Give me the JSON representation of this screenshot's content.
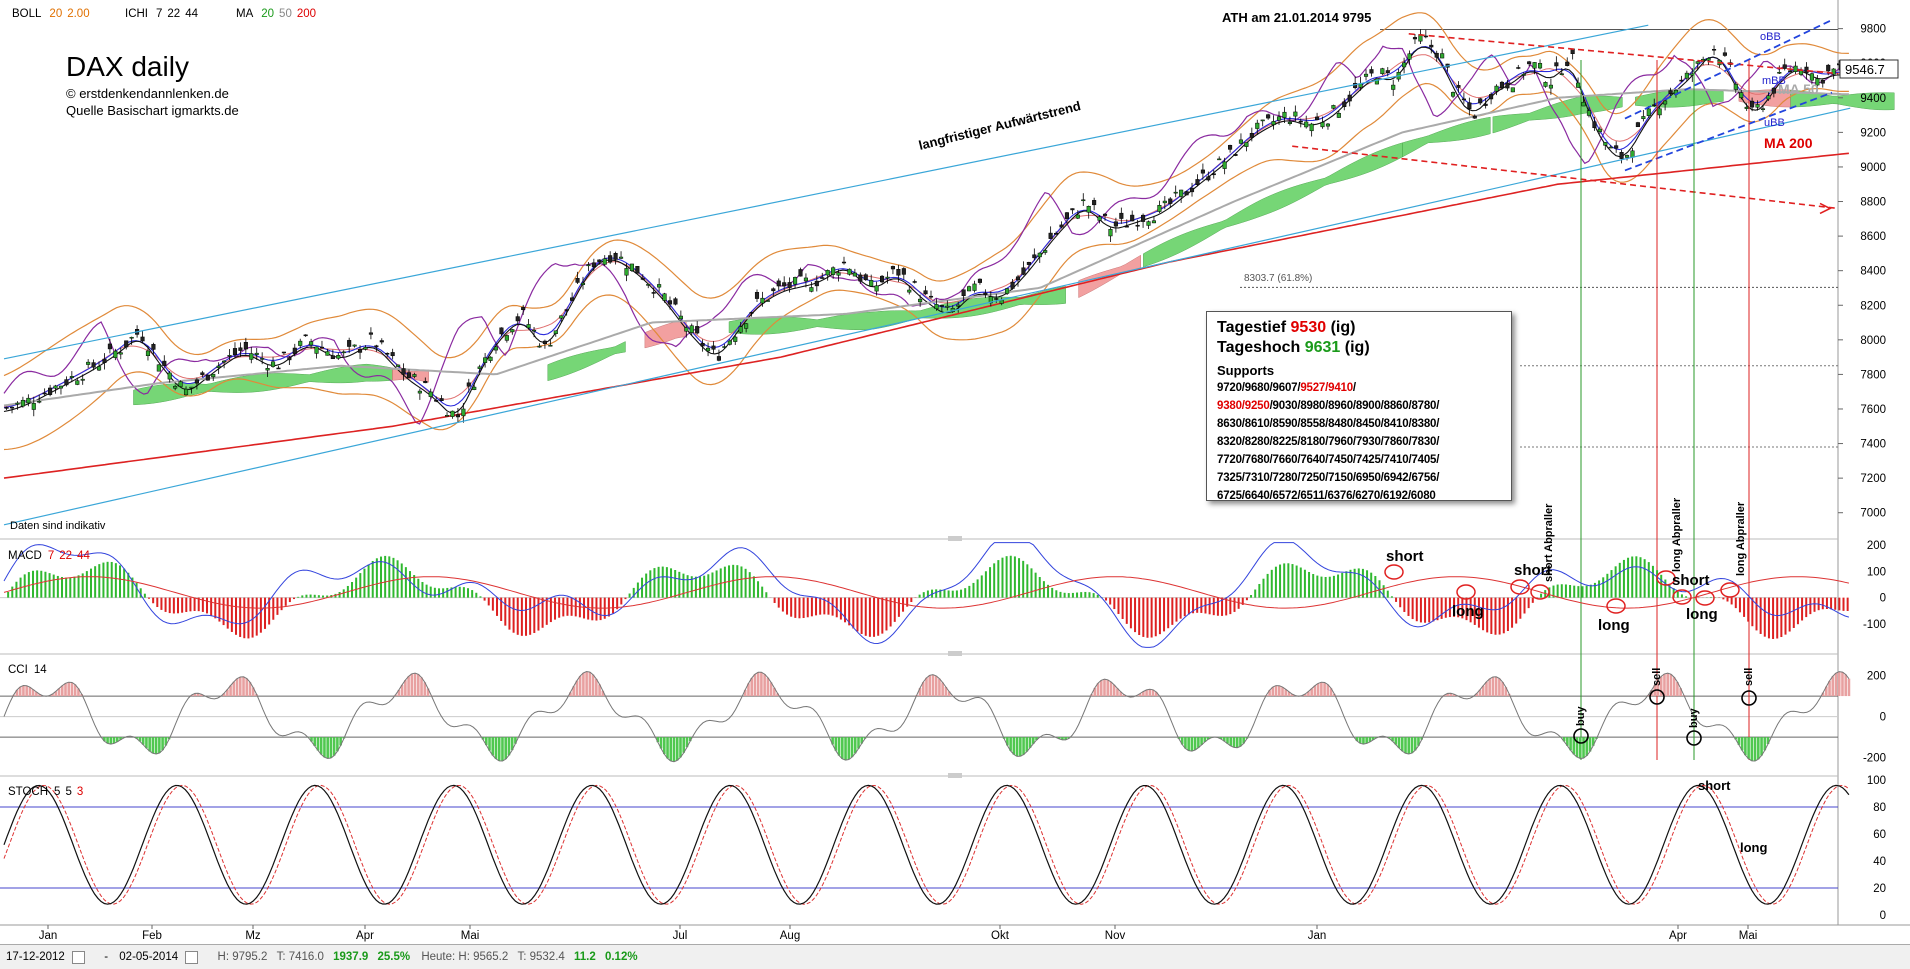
{
  "header": {
    "boll": {
      "name": "BOLL",
      "p1": "20",
      "p2": "2.00"
    },
    "ichi": {
      "name": "ICHI",
      "p1": "7",
      "p2": "22",
      "p3": "44"
    },
    "ma": {
      "name": "MA",
      "p1": "20",
      "p2": "50",
      "p3": "200"
    }
  },
  "title": "DAX daily",
  "credit1": "© erstdenkendannlenken.de",
  "credit2": "Quelle Basischart igmarkts.de",
  "data_note": "Daten sind indikativ",
  "ath_label": "ATH am 21.01.2014 9795",
  "trend_label": "langfristiger Aufwärtstrend",
  "fib_label": "8303.7 (61.8%)",
  "current_price": "9546.7",
  "labels_right": {
    "obb": "oBB",
    "mbb": "mBB",
    "ubb": "uBB",
    "ma50": "MA 50",
    "ma200": "MA 200"
  },
  "info_box": {
    "tagestief_label": "Tagestief",
    "tagestief_value": "9530",
    "tageshoch_label": "Tageshoch",
    "tageshoch_value": "9631",
    "ig": "(ig)",
    "supports_title": "Supports",
    "support_lines": [
      [
        {
          "t": "9720/9680/9607/",
          "c": "k"
        },
        {
          "t": "9527/9410",
          "c": "r"
        },
        {
          "t": "/",
          "c": "k"
        }
      ],
      [
        {
          "t": "9380/9250",
          "c": "r"
        },
        {
          "t": "/9030/8980/8960/8900/8860/8780/",
          "c": "k"
        }
      ],
      [
        {
          "t": "8630/8610/8590/8558/8480/8450/8410/8380/",
          "c": "k"
        }
      ],
      [
        {
          "t": "8320/8280/8225/8180/7960/7930/7860/7830/",
          "c": "k"
        }
      ],
      [
        {
          "t": "7720/7680/7660/7640/7450/7425/7410/7405/",
          "c": "k"
        }
      ],
      [
        {
          "t": "7325/7310/7280/7250/7150/6950/6942/6756/",
          "c": "k"
        }
      ],
      [
        {
          "t": "6725/6640/6572/6511/6376/6270/6192/6080",
          "c": "k"
        }
      ]
    ]
  },
  "panels": {
    "macd": {
      "name": "MACD",
      "p1": "7",
      "p2": "22",
      "p3": "44"
    },
    "cci": {
      "name": "CCI",
      "p1": "14"
    },
    "stoch": {
      "name": "STOCH",
      "p1": "5",
      "p2": "5",
      "p3": "3"
    }
  },
  "annotations": {
    "short": "short",
    "long": "long",
    "buy": "buy",
    "sell": "sell",
    "short_abpraller": "short Abpraller",
    "long_abpraller": "long Abpraller"
  },
  "statusbar": {
    "from": "17-12-2012",
    "dash": "-",
    "to": "02-05-2014",
    "h": "H: 9795.2",
    "t": "T: 7416.0",
    "change": "1937.9",
    "change_pct": "25.5%",
    "heute_h": "Heute: H: 9565.2",
    "heute_t": "T: 9532.4",
    "heute_change": "11.2",
    "heute_pct": "0.12%"
  },
  "chart_data": {
    "type": "line",
    "title": "DAX daily",
    "x_ticks": [
      "Jan",
      "Feb",
      "Mz",
      "Apr",
      "Mai",
      "Jul",
      "Aug",
      "Okt",
      "Nov",
      "Jan",
      "Apr",
      "Mai"
    ],
    "price_axis": {
      "ticks": [
        7000,
        7200,
        7400,
        7600,
        7800,
        8000,
        8200,
        8400,
        8600,
        8800,
        9000,
        9200,
        9400,
        9600,
        9800
      ],
      "ylim": [
        6900,
        9850
      ]
    },
    "series": [
      {
        "name": "DAX",
        "points": [
          [
            0,
            7600
          ],
          [
            20,
            7650
          ],
          [
            45,
            7750
          ],
          [
            70,
            7850
          ],
          [
            90,
            7950
          ],
          [
            105,
            8050
          ],
          [
            118,
            7900
          ],
          [
            140,
            7700
          ],
          [
            165,
            7850
          ],
          [
            185,
            7950
          ],
          [
            210,
            7850
          ],
          [
            235,
            8000
          ],
          [
            260,
            7900
          ],
          [
            285,
            8000
          ],
          [
            310,
            7800
          ],
          [
            330,
            7700
          ],
          [
            350,
            7550
          ],
          [
            365,
            7800
          ],
          [
            380,
            8000
          ],
          [
            400,
            8150
          ],
          [
            418,
            7950
          ],
          [
            440,
            8250
          ],
          [
            455,
            8450
          ],
          [
            470,
            8500
          ],
          [
            490,
            8400
          ],
          [
            510,
            8250
          ],
          [
            530,
            8050
          ],
          [
            550,
            7900
          ],
          [
            565,
            8050
          ],
          [
            580,
            8200
          ],
          [
            600,
            8300
          ],
          [
            630,
            8350
          ],
          [
            650,
            8450
          ],
          [
            670,
            8300
          ],
          [
            690,
            8400
          ],
          [
            710,
            8250
          ],
          [
            730,
            8150
          ],
          [
            750,
            8300
          ],
          [
            770,
            8250
          ],
          [
            790,
            8400
          ],
          [
            810,
            8600
          ],
          [
            835,
            8800
          ],
          [
            855,
            8650
          ],
          [
            875,
            8700
          ],
          [
            895,
            8750
          ],
          [
            920,
            8900
          ],
          [
            945,
            9050
          ],
          [
            965,
            9200
          ],
          [
            990,
            9300
          ],
          [
            1010,
            9250
          ],
          [
            1025,
            9300
          ],
          [
            1045,
            9450
          ],
          [
            1060,
            9550
          ],
          [
            1075,
            9500
          ],
          [
            1085,
            9650
          ],
          [
            1095,
            9750
          ],
          [
            1102,
            9700
          ],
          [
            1110,
            9650
          ],
          [
            1120,
            9450
          ],
          [
            1135,
            9300
          ],
          [
            1150,
            9450
          ],
          [
            1165,
            9500
          ],
          [
            1180,
            9600
          ],
          [
            1195,
            9500
          ],
          [
            1210,
            9650
          ],
          [
            1225,
            9300
          ],
          [
            1240,
            9100
          ],
          [
            1252,
            9050
          ],
          [
            1262,
            9200
          ],
          [
            1275,
            9350
          ],
          [
            1290,
            9450
          ],
          [
            1305,
            9550
          ],
          [
            1320,
            9700
          ],
          [
            1330,
            9600
          ],
          [
            1340,
            9450
          ],
          [
            1350,
            9300
          ],
          [
            1362,
            9400
          ],
          [
            1375,
            9550
          ],
          [
            1390,
            9600
          ],
          [
            1400,
            9500
          ],
          [
            1410,
            9550
          ],
          [
            1418,
            9560
          ],
          [
            1425,
            9545
          ]
        ]
      },
      {
        "name": "MA 200",
        "points": [
          [
            0,
            7200
          ],
          [
            300,
            7500
          ],
          [
            600,
            7900
          ],
          [
            900,
            8450
          ],
          [
            1200,
            8900
          ],
          [
            1426,
            9080
          ]
        ]
      },
      {
        "name": "MA 50",
        "points": [
          [
            0,
            7620
          ],
          [
            120,
            7750
          ],
          [
            260,
            7850
          ],
          [
            380,
            7800
          ],
          [
            500,
            8100
          ],
          [
            650,
            8150
          ],
          [
            800,
            8300
          ],
          [
            950,
            8800
          ],
          [
            1080,
            9200
          ],
          [
            1200,
            9400
          ],
          [
            1300,
            9450
          ],
          [
            1426,
            9420
          ]
        ]
      }
    ],
    "trendlines": [
      {
        "name": "langfristiger Aufwärtstrend",
        "points": [
          [
            0,
            7890
          ],
          [
            1270,
            9820
          ]
        ]
      },
      {
        "name": "",
        "points": [
          [
            0,
            6930
          ],
          [
            1426,
            9340
          ]
        ]
      }
    ],
    "levels": [
      {
        "label": "ATH am 21.01.2014 9795",
        "value": 9795
      },
      {
        "label": "8303.7 (61.8%)",
        "value": 8303.7
      }
    ],
    "macd_axis": {
      "ticks": [
        200,
        100,
        0,
        -100
      ],
      "ylim": [
        -200,
        220
      ]
    },
    "cci_axis": {
      "ticks": [
        200,
        0,
        -200
      ],
      "ylim": [
        -260,
        300
      ]
    },
    "stoch_axis": {
      "ticks": [
        0,
        20,
        40,
        60,
        80,
        100
      ],
      "ylim": [
        0,
        100
      ]
    },
    "stoch_levels": [
      20,
      80
    ],
    "cci_levels": [
      -100,
      100
    ]
  }
}
